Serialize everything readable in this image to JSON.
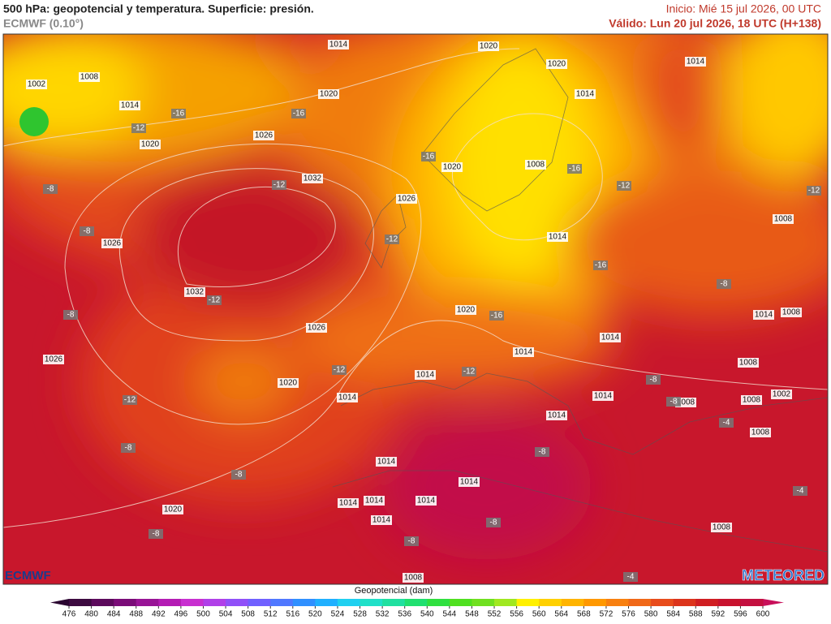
{
  "header": {
    "title": "500 hPa: geopotencial y temperatura. Superficie: presión.",
    "model": "ECMWF (0.10°)",
    "start": "Inicio: Mié 15 jul 2026, 00 UTC",
    "valid": "Válido: Lun 20 jul 2026, 18 UTC (H+138)"
  },
  "map": {
    "pressure_labels": [
      1002,
      1008,
      1014,
      1020,
      1026,
      1032,
      1026,
      1032,
      1026,
      1026,
      1020,
      1014,
      1020,
      1014,
      1020,
      1020,
      1020,
      1026,
      1008,
      1014,
      1020,
      1014,
      1014,
      1008,
      1020,
      1014,
      1014,
      1014,
      1014,
      1008,
      1008,
      1002,
      1008,
      1014,
      1008,
      1008,
      1014,
      1014,
      1014,
      1014,
      1014,
      1014,
      1008,
      1008,
      1014
    ],
    "temperature_labels": [
      -12,
      -16,
      -16,
      -8,
      -12,
      -16,
      -12,
      -8,
      -12,
      -8,
      -12,
      -12,
      -8,
      -8,
      -8,
      -12,
      -16,
      -16,
      -12,
      -12,
      -16,
      -8,
      -8,
      -4,
      -8,
      -8,
      -8,
      -4,
      -4,
      -8
    ]
  },
  "logos": {
    "left": "ECMWF",
    "right": "METEORED"
  },
  "colorbar": {
    "label": "Geopotencial (dam)",
    "ticks": [
      476,
      480,
      484,
      488,
      492,
      496,
      500,
      504,
      508,
      512,
      516,
      520,
      524,
      528,
      532,
      536,
      540,
      544,
      548,
      552,
      556,
      560,
      564,
      568,
      572,
      576,
      580,
      584,
      588,
      592,
      596,
      600
    ]
  }
}
